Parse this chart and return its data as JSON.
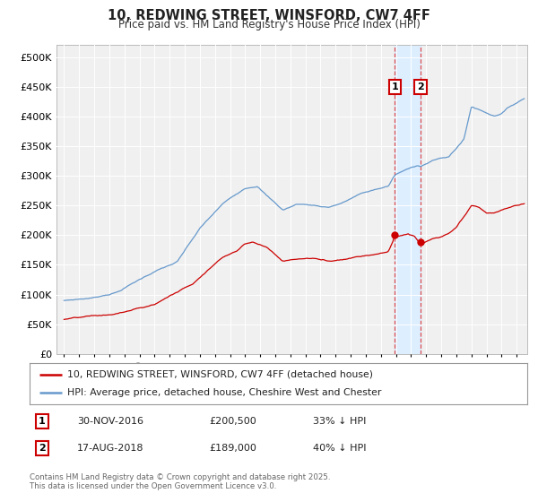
{
  "title": "10, REDWING STREET, WINSFORD, CW7 4FF",
  "subtitle": "Price paid vs. HM Land Registry's House Price Index (HPI)",
  "legend_red": "10, REDWING STREET, WINSFORD, CW7 4FF (detached house)",
  "legend_blue": "HPI: Average price, detached house, Cheshire West and Chester",
  "footnote": "Contains HM Land Registry data © Crown copyright and database right 2025.\nThis data is licensed under the Open Government Licence v3.0.",
  "annotation1_date": "30-NOV-2016",
  "annotation1_price": "£200,500",
  "annotation1_hpi": "33% ↓ HPI",
  "annotation2_date": "17-AUG-2018",
  "annotation2_price": "£189,000",
  "annotation2_hpi": "40% ↓ HPI",
  "sale1_x": 2016.917,
  "sale1_y": 200500,
  "sale2_x": 2018.628,
  "sale2_y": 189000,
  "ylim": [
    0,
    520000
  ],
  "xlim_start": 1994.5,
  "xlim_end": 2025.7,
  "red_color": "#cc0000",
  "blue_color": "#6699cc",
  "vline_color": "#dd3333",
  "vspan_color": "#ddeeff",
  "plot_bg": "#f0f0f0",
  "fig_bg": "#ffffff",
  "grid_color": "#ffffff",
  "yticks": [
    0,
    50000,
    100000,
    150000,
    200000,
    250000,
    300000,
    350000,
    400000,
    450000,
    500000
  ],
  "ytick_labels": [
    "£0",
    "£50K",
    "£100K",
    "£150K",
    "£200K",
    "£250K",
    "£300K",
    "£350K",
    "£400K",
    "£450K",
    "£500K"
  ],
  "xticks": [
    1995,
    1996,
    1997,
    1998,
    1999,
    2000,
    2001,
    2002,
    2003,
    2004,
    2005,
    2006,
    2007,
    2008,
    2009,
    2010,
    2011,
    2012,
    2013,
    2014,
    2015,
    2016,
    2017,
    2018,
    2019,
    2020,
    2021,
    2022,
    2023,
    2024,
    2025
  ]
}
